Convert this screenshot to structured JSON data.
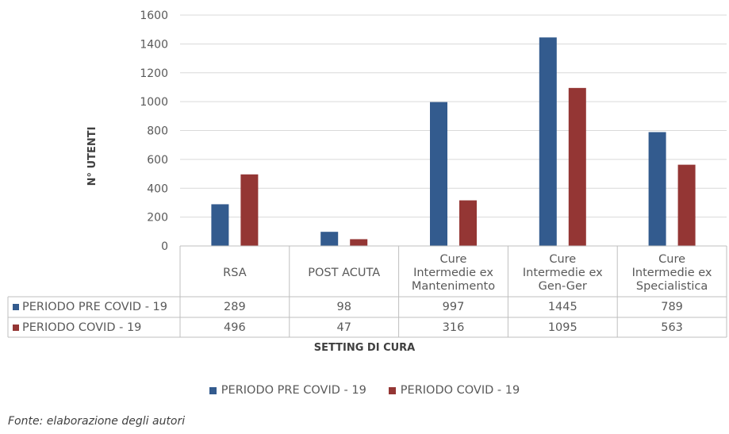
{
  "colors": {
    "pre_covid": "#335b8e",
    "covid": "#943634",
    "grid": "#d9d9d9",
    "table_border": "#bfbfbf"
  },
  "chart_data": {
    "type": "bar",
    "categories": [
      "RSA",
      "POST ACUTA",
      "Cure\nIntermedie ex\nMantenimento",
      "Cure\nIntermedie ex\nGen-Ger",
      "Cure\nIntermedie ex\nSpecialistica"
    ],
    "series": [
      {
        "name": "PERIODO PRE COVID - 19",
        "values": [
          289,
          98,
          997,
          1445,
          789
        ]
      },
      {
        "name": "PERIODO COVID - 19",
        "values": [
          496,
          47,
          316,
          1095,
          563
        ]
      }
    ],
    "yticks": [
      "0",
      "200",
      "400",
      "600",
      "800",
      "1000",
      "1200",
      "1400",
      "1600"
    ],
    "ylim": [
      0,
      1600
    ],
    "xlabel": "SETTING DI CURA",
    "ylabel": "N° UTENTI",
    "grid": true,
    "legend": "bottom",
    "data_table": true
  },
  "source_note": "Fonte: elaborazione degli autori"
}
